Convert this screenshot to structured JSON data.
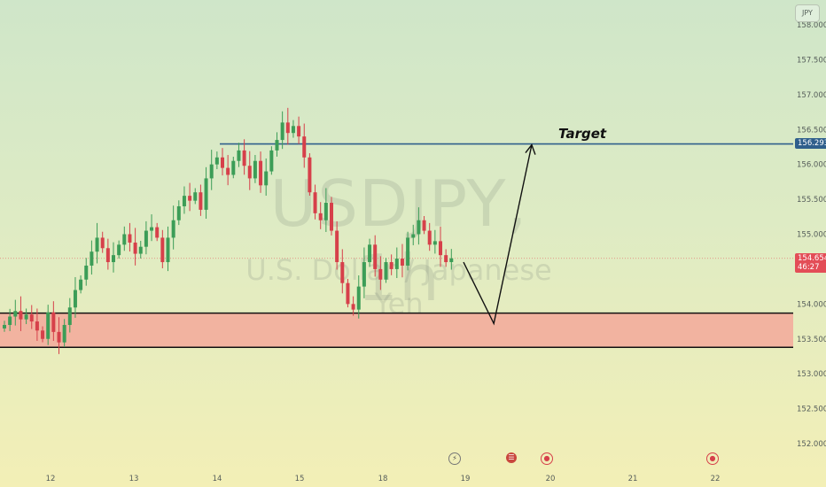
{
  "currency_badge": "JPY",
  "watermark": {
    "symbol": "USDJPY, 1h",
    "description": "U.S. Dollar / Japanese Yen"
  },
  "annotations": {
    "target_label": "Target"
  },
  "price_labels": {
    "target_price": "156.293",
    "current_price": "154.654",
    "countdown": "46:27"
  },
  "colors": {
    "bull": "#3c9d57",
    "bear": "#d6404a",
    "target_line": "#2f5f8c",
    "zone_fill": "#f2b3a0",
    "current_label": "#e34d57",
    "target_label_bg": "#2f5f8c"
  },
  "event_icons": [
    "lightning-icon",
    "us-flag-icon",
    "event-circle-icon",
    "event-circle-icon"
  ],
  "chart_data": {
    "type": "candlestick",
    "y_axis": {
      "range": [
        151.8,
        158.2
      ],
      "ticks": [
        "152.000",
        "152.500",
        "153.000",
        "153.500",
        "154.000",
        "154.500",
        "155.000",
        "155.500",
        "156.000",
        "156.500",
        "157.000",
        "157.500",
        "158.000"
      ]
    },
    "x_axis": {
      "ticks": [
        "12",
        "13",
        "14",
        "15",
        "18",
        "19",
        "20",
        "21",
        "22"
      ]
    },
    "levels": {
      "target": 156.293,
      "zone_top": 153.87,
      "zone_bottom": 153.38,
      "current": 154.654
    },
    "projection": [
      {
        "bar": 0,
        "price": 154.6
      },
      {
        "bar": 12,
        "price": 153.72
      },
      {
        "bar": 27,
        "price": 156.28
      }
    ],
    "path": [
      153.7,
      153.82,
      153.9,
      153.78,
      153.85,
      153.75,
      153.62,
      153.5,
      153.88,
      153.6,
      153.45,
      153.7,
      153.95,
      154.2,
      154.35,
      154.55,
      154.75,
      154.95,
      154.8,
      154.6,
      154.7,
      154.85,
      155.0,
      154.88,
      154.72,
      154.82,
      155.05,
      155.1,
      154.95,
      154.6,
      154.95,
      155.2,
      155.4,
      155.55,
      155.48,
      155.6,
      155.35,
      155.8,
      156.0,
      156.1,
      155.95,
      155.85,
      156.05,
      156.2,
      155.98,
      155.8,
      156.05,
      155.7,
      155.9,
      156.2,
      156.35,
      156.6,
      156.45,
      156.55,
      156.4,
      156.1,
      155.6,
      155.3,
      155.2,
      155.45,
      155.05,
      154.6,
      154.3,
      154.0,
      153.92,
      154.25,
      154.6,
      154.85,
      154.5,
      154.35,
      154.6,
      154.5,
      154.65,
      154.55,
      154.95,
      155.0,
      155.2,
      155.05,
      154.85,
      154.9,
      154.7,
      154.6,
      154.654
    ]
  }
}
